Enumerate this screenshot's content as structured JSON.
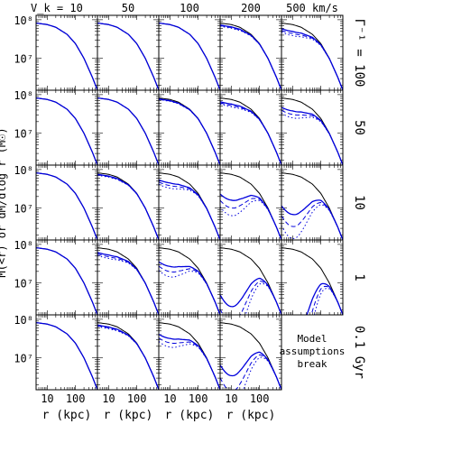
{
  "chart_data": {
    "type": "line",
    "title": "",
    "xlabel": "r (kpc)",
    "ylabel": "M(<r) or dM/dlog r (M☉)",
    "xscale": "log",
    "yscale": "log",
    "xlim": [
      4,
      600
    ],
    "ylim": [
      1500000.0,
      130000000.0
    ],
    "x_ticks": [
      "10",
      "100"
    ],
    "y_ticks": [
      "10⁷",
      "10⁸"
    ],
    "column_labels": [
      "V_k = 10",
      "50",
      "100",
      "200",
      "500 km/s"
    ],
    "row_labels": [
      "Γ⁻¹ = 100",
      "50",
      "10",
      "1",
      "0.1 Gyr"
    ],
    "empty_panel_note": [
      "Model",
      "assumptions",
      "break"
    ],
    "line_colors": {
      "reference": "#000000",
      "model": "#0000dd"
    },
    "reference_profile": {
      "name": "",
      "x": [
        4,
        10,
        20,
        50,
        100,
        200,
        400,
        600
      ],
      "y": [
        82000000.0,
        75000000.0,
        64000000.0,
        42000000.0,
        24000000.0,
        10000000.0,
        3200000.0,
        1500000.0
      ]
    },
    "panels": [
      {
        "row": 0,
        "col": 0,
        "deviation": 0
      },
      {
        "row": 0,
        "col": 1,
        "deviation": 0
      },
      {
        "row": 0,
        "col": 2,
        "deviation": 0
      },
      {
        "row": 0,
        "col": 3,
        "deviation": 0.04
      },
      {
        "row": 0,
        "col": 4,
        "deviation": 0.12
      },
      {
        "row": 1,
        "col": 0,
        "deviation": 0
      },
      {
        "row": 1,
        "col": 1,
        "deviation": 0
      },
      {
        "row": 1,
        "col": 2,
        "deviation": 0.02
      },
      {
        "row": 1,
        "col": 3,
        "deviation": 0.08
      },
      {
        "row": 1,
        "col": 4,
        "deviation": 0.2
      },
      {
        "row": 2,
        "col": 0,
        "deviation": 0
      },
      {
        "row": 2,
        "col": 1,
        "deviation": 0.03
      },
      {
        "row": 2,
        "col": 2,
        "deviation": 0.15
      },
      {
        "row": 2,
        "col": 3,
        "deviation": 0.45
      },
      {
        "row": 2,
        "col": 4,
        "deviation": 0.7
      },
      {
        "row": 3,
        "col": 0,
        "deviation": 0
      },
      {
        "row": 3,
        "col": 1,
        "deviation": 0.1
      },
      {
        "row": 3,
        "col": 2,
        "deviation": 0.3
      },
      {
        "row": 3,
        "col": 3,
        "deviation": 1.0
      },
      {
        "row": 3,
        "col": 4,
        "deviation": 1.6
      },
      {
        "row": 4,
        "col": 0,
        "deviation": 0
      },
      {
        "row": 4,
        "col": 1,
        "deviation": 0.05
      },
      {
        "row": 4,
        "col": 2,
        "deviation": 0.25
      },
      {
        "row": 4,
        "col": 3,
        "deviation": 0.9
      }
    ]
  }
}
